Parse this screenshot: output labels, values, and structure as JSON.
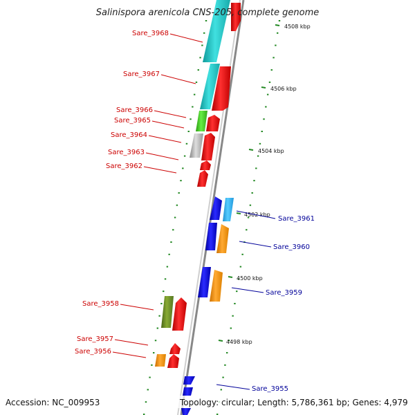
{
  "title": "Salinispora arenicola CNS-205, complete genome",
  "accession": "Accession: NC_009953",
  "topology": "Topology: circular; Length: 5,786,361 bp; Genes: 4,979",
  "ticks": [
    {
      "label": "4508 kbp"
    },
    {
      "label": "4506 kbp"
    },
    {
      "label": "4504 kbp"
    },
    {
      "label": "4502 kbp"
    },
    {
      "label": "4500 kbp"
    },
    {
      "label": "4498 kbp"
    }
  ],
  "genes_left": [
    {
      "name": "Sare_3968"
    },
    {
      "name": "Sare_3967"
    },
    {
      "name": "Sare_3966"
    },
    {
      "name": "Sare_3965"
    },
    {
      "name": "Sare_3964"
    },
    {
      "name": "Sare_3963"
    },
    {
      "name": "Sare_3962"
    },
    {
      "name": "Sare_3958"
    },
    {
      "name": "Sare_3957"
    },
    {
      "name": "Sare_3956"
    }
  ],
  "genes_right": [
    {
      "name": "Sare_3961"
    },
    {
      "name": "Sare_3960"
    },
    {
      "name": "Sare_3959"
    },
    {
      "name": "Sare_3955"
    }
  ],
  "colors": {
    "cds_red": "#ee1111",
    "cyan": "#22cccc",
    "light_blue": "#33bbee",
    "blue": "#1111dd",
    "orange": "#ff9911",
    "olive": "#668822",
    "green": "#44cc22",
    "gray": "#aaaaaa",
    "label_red": "#cc0000",
    "label_blue": "#000099",
    "tick_green": "#228822"
  }
}
